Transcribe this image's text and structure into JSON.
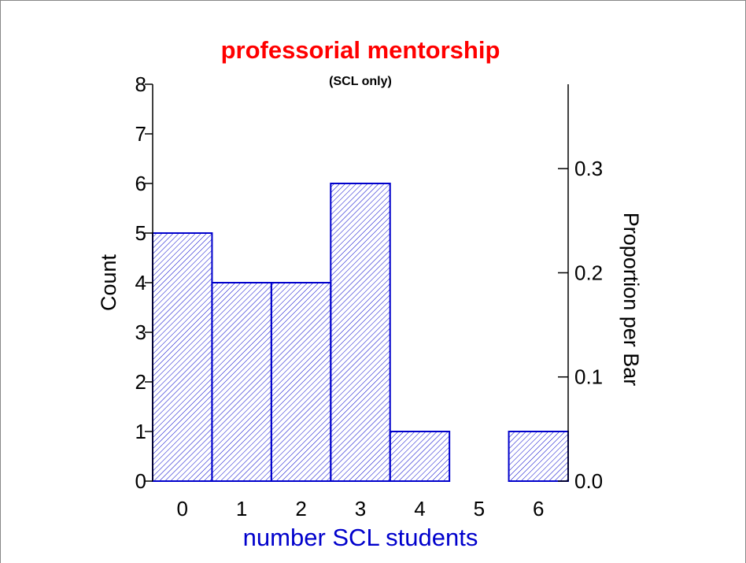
{
  "chart_data": {
    "type": "bar",
    "title": "professorial mentorship",
    "subtitle": "(SCL only)",
    "x_label": "number SCL students",
    "y_label": "Count",
    "y2_label": "Proportion per Bar",
    "categories": [
      "0",
      "1",
      "2",
      "3",
      "4",
      "5",
      "6"
    ],
    "values": [
      5,
      4,
      4,
      6,
      1,
      0,
      1
    ],
    "color": "#0000cc",
    "title_color": "#ff0000",
    "x_label_color": "#0000cc",
    "ylim": [
      0,
      8
    ],
    "yticks": [
      0,
      1,
      2,
      3,
      4,
      5,
      6,
      7,
      8
    ],
    "y2lim": [
      0,
      0.381
    ],
    "y2ticks": [
      {
        "value": 0,
        "label": "0.0"
      },
      {
        "value": 0.1,
        "label": "0.1"
      },
      {
        "value": 0.2,
        "label": "0.2"
      },
      {
        "value": 0.3,
        "label": "0.3"
      }
    ],
    "grid": false
  }
}
